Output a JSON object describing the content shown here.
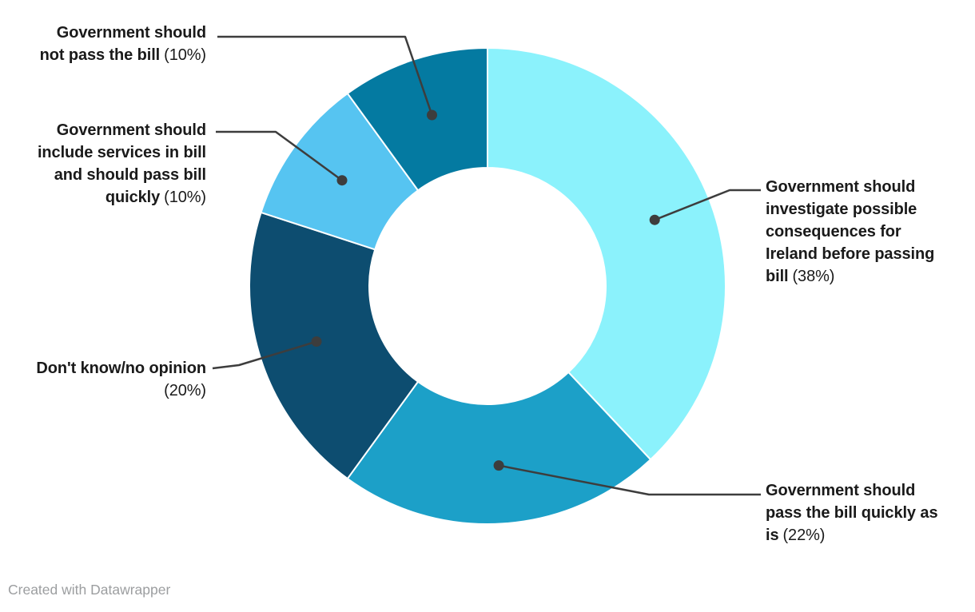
{
  "chart_data": {
    "type": "pie",
    "subtype": "donut",
    "title": "",
    "unit": "%",
    "direction": "clockwise",
    "start_angle_deg": 0,
    "legend": "none",
    "annotation_style": "outside labels with connector lines and dots",
    "slices": [
      {
        "label": "Government should investigate possible consequences for Ireland before passing bill",
        "value": 38,
        "color": "#8BF2FC"
      },
      {
        "label": "Government should pass the bill quickly as is",
        "value": 22,
        "color": "#1CA0C8"
      },
      {
        "label": "Don't know/no opinion",
        "value": 20,
        "color": "#0D4D70"
      },
      {
        "label": "Government should include services in bill and should pass bill quickly",
        "value": 10,
        "color": "#56C4F1"
      },
      {
        "label": "Government should not pass the bill",
        "value": 10,
        "color": "#047AA1"
      }
    ]
  },
  "labels": {
    "investigate": {
      "lines": [
        "Government should",
        "investigate possible",
        "consequences for",
        "Ireland before passing",
        "bill"
      ],
      "pct": "(38%)"
    },
    "pass_quickly": {
      "lines": [
        "Government should",
        "pass the bill quickly as",
        "is"
      ],
      "pct": "(22%)"
    },
    "dont_know": {
      "lines": [
        "Don't know/no opinion"
      ],
      "pct": "(20%)"
    },
    "include_services": {
      "lines": [
        "Government should",
        "include services in bill",
        "and should pass bill",
        "quickly"
      ],
      "pct": "(10%)"
    },
    "not_pass": {
      "lines": [
        "Government should",
        "not pass the bill"
      ],
      "pct": "(10%)"
    }
  },
  "footer": {
    "credit": "Created with Datawrapper"
  },
  "colors": {
    "background": "#ffffff",
    "leader_line": "#3d3d3d",
    "leader_dot": "#3d3d3d",
    "slice_divider": "#ffffff",
    "label_text": "#1a1a1a",
    "credit_text": "#9c9ea0"
  }
}
